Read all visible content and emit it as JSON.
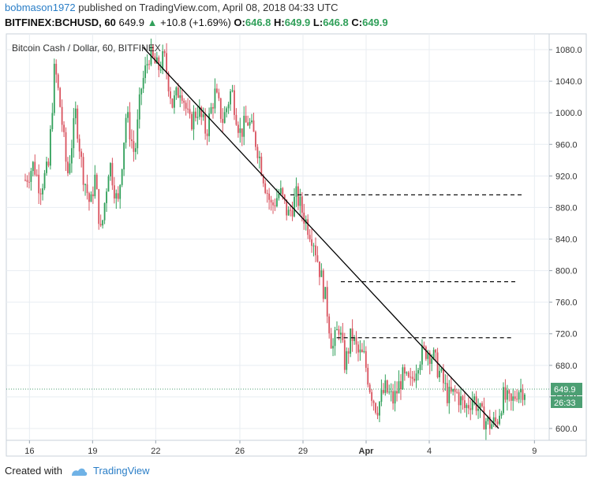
{
  "header": {
    "author": "bobmason1972",
    "published_text": "published on TradingView.com, April 08, 2018 04:33 UTC",
    "symbol": "BITFINEX:BCHUSD, 60",
    "last": "649.9",
    "change": "+10.8 (+1.69%)",
    "o_label": "O:",
    "o_val": "646.8",
    "h_label": "H:",
    "h_val": "649.9",
    "l_label": "L:",
    "l_val": "646.8",
    "c_label": "C:",
    "c_val": "649.9"
  },
  "footer": {
    "created_with": "Created with",
    "brand": "TradingView"
  },
  "colors": {
    "up": "#31a05a",
    "down": "#d9535f",
    "grid": "#e8edf2",
    "line": "#000000",
    "price_tag": "#4c9f73"
  },
  "chart_data": {
    "type": "candlestick",
    "title": "Bitcoin Cash / Dollar, 60, BITFINEX",
    "ylim": [
      585,
      1100
    ],
    "y_ticks": [
      600,
      640,
      680,
      720,
      760,
      800,
      840,
      880,
      920,
      960,
      1000,
      1040,
      1080
    ],
    "y_tick_labels": [
      "600.0",
      "640.0",
      "680.0",
      "720.0",
      "760.0",
      "800.0",
      "840.0",
      "880.0",
      "920.0",
      "960.0",
      "1000.0",
      "1040.0",
      "1080.0"
    ],
    "x_ticks": [
      {
        "label": "16",
        "t": 0.0
      },
      {
        "label": "19",
        "t": 3.0
      },
      {
        "label": "22",
        "t": 6.0
      },
      {
        "label": "26",
        "t": 10.0
      },
      {
        "label": "29",
        "t": 13.0
      },
      {
        "label": "Apr",
        "t": 16.0
      },
      {
        "label": "4",
        "t": 19.0
      },
      {
        "label": "9",
        "t": 24.0
      }
    ],
    "xlim": [
      -1.1,
      24.7
    ],
    "price_line": 649.9,
    "price_tag": "649.9",
    "countdown_tag": "26:33",
    "trendline": {
      "x1": 5.4,
      "y1": 1083,
      "x2": 22.3,
      "y2": 600
    },
    "horizontal_levels": [
      {
        "y": 896,
        "x_start": 12.4,
        "x_end": 23.4
      },
      {
        "y": 786,
        "x_start": 14.8,
        "x_end": 23.2
      },
      {
        "y": 715,
        "x_start": 14.6,
        "x_end": 23.0
      }
    ],
    "price_path": [
      [
        -0.2,
        915
      ],
      [
        0.2,
        935
      ],
      [
        0.5,
        905
      ],
      [
        0.9,
        930
      ],
      [
        1.2,
        1060
      ],
      [
        1.5,
        1000
      ],
      [
        1.8,
        920
      ],
      [
        2.2,
        1000
      ],
      [
        2.5,
        930
      ],
      [
        2.9,
        880
      ],
      [
        3.1,
        920
      ],
      [
        3.4,
        845
      ],
      [
        3.8,
        940
      ],
      [
        4.2,
        880
      ],
      [
        4.6,
        1000
      ],
      [
        5.0,
        945
      ],
      [
        5.3,
        1030
      ],
      [
        5.7,
        1075
      ],
      [
        6.1,
        1055
      ],
      [
        6.4,
        1070
      ],
      [
        6.8,
        1010
      ],
      [
        7.2,
        1035
      ],
      [
        7.6,
        985
      ],
      [
        8.0,
        1005
      ],
      [
        8.4,
        975
      ],
      [
        8.8,
        1025
      ],
      [
        9.2,
        990
      ],
      [
        9.6,
        1030
      ],
      [
        10.0,
        975
      ],
      [
        10.4,
        990
      ],
      [
        10.8,
        960
      ],
      [
        11.2,
        910
      ],
      [
        11.5,
        880
      ],
      [
        11.9,
        900
      ],
      [
        12.3,
        870
      ],
      [
        12.7,
        895
      ],
      [
        13.1,
        865
      ],
      [
        13.5,
        840
      ],
      [
        13.8,
        800
      ],
      [
        14.1,
        760
      ],
      [
        14.4,
        700
      ],
      [
        14.7,
        730
      ],
      [
        15.0,
        680
      ],
      [
        15.3,
        720
      ],
      [
        15.6,
        695
      ],
      [
        15.9,
        690
      ],
      [
        16.2,
        650
      ],
      [
        16.5,
        625
      ],
      [
        16.9,
        650
      ],
      [
        17.3,
        635
      ],
      [
        17.7,
        665
      ],
      [
        18.1,
        655
      ],
      [
        18.5,
        690
      ],
      [
        18.9,
        700
      ],
      [
        19.2,
        690
      ],
      [
        19.5,
        670
      ],
      [
        19.9,
        640
      ],
      [
        20.3,
        645
      ],
      [
        20.7,
        625
      ],
      [
        21.1,
        640
      ],
      [
        21.5,
        615
      ],
      [
        21.9,
        605
      ],
      [
        22.2,
        608
      ],
      [
        22.5,
        640
      ],
      [
        22.9,
        630
      ],
      [
        23.2,
        650
      ],
      [
        23.6,
        649.9
      ]
    ]
  }
}
